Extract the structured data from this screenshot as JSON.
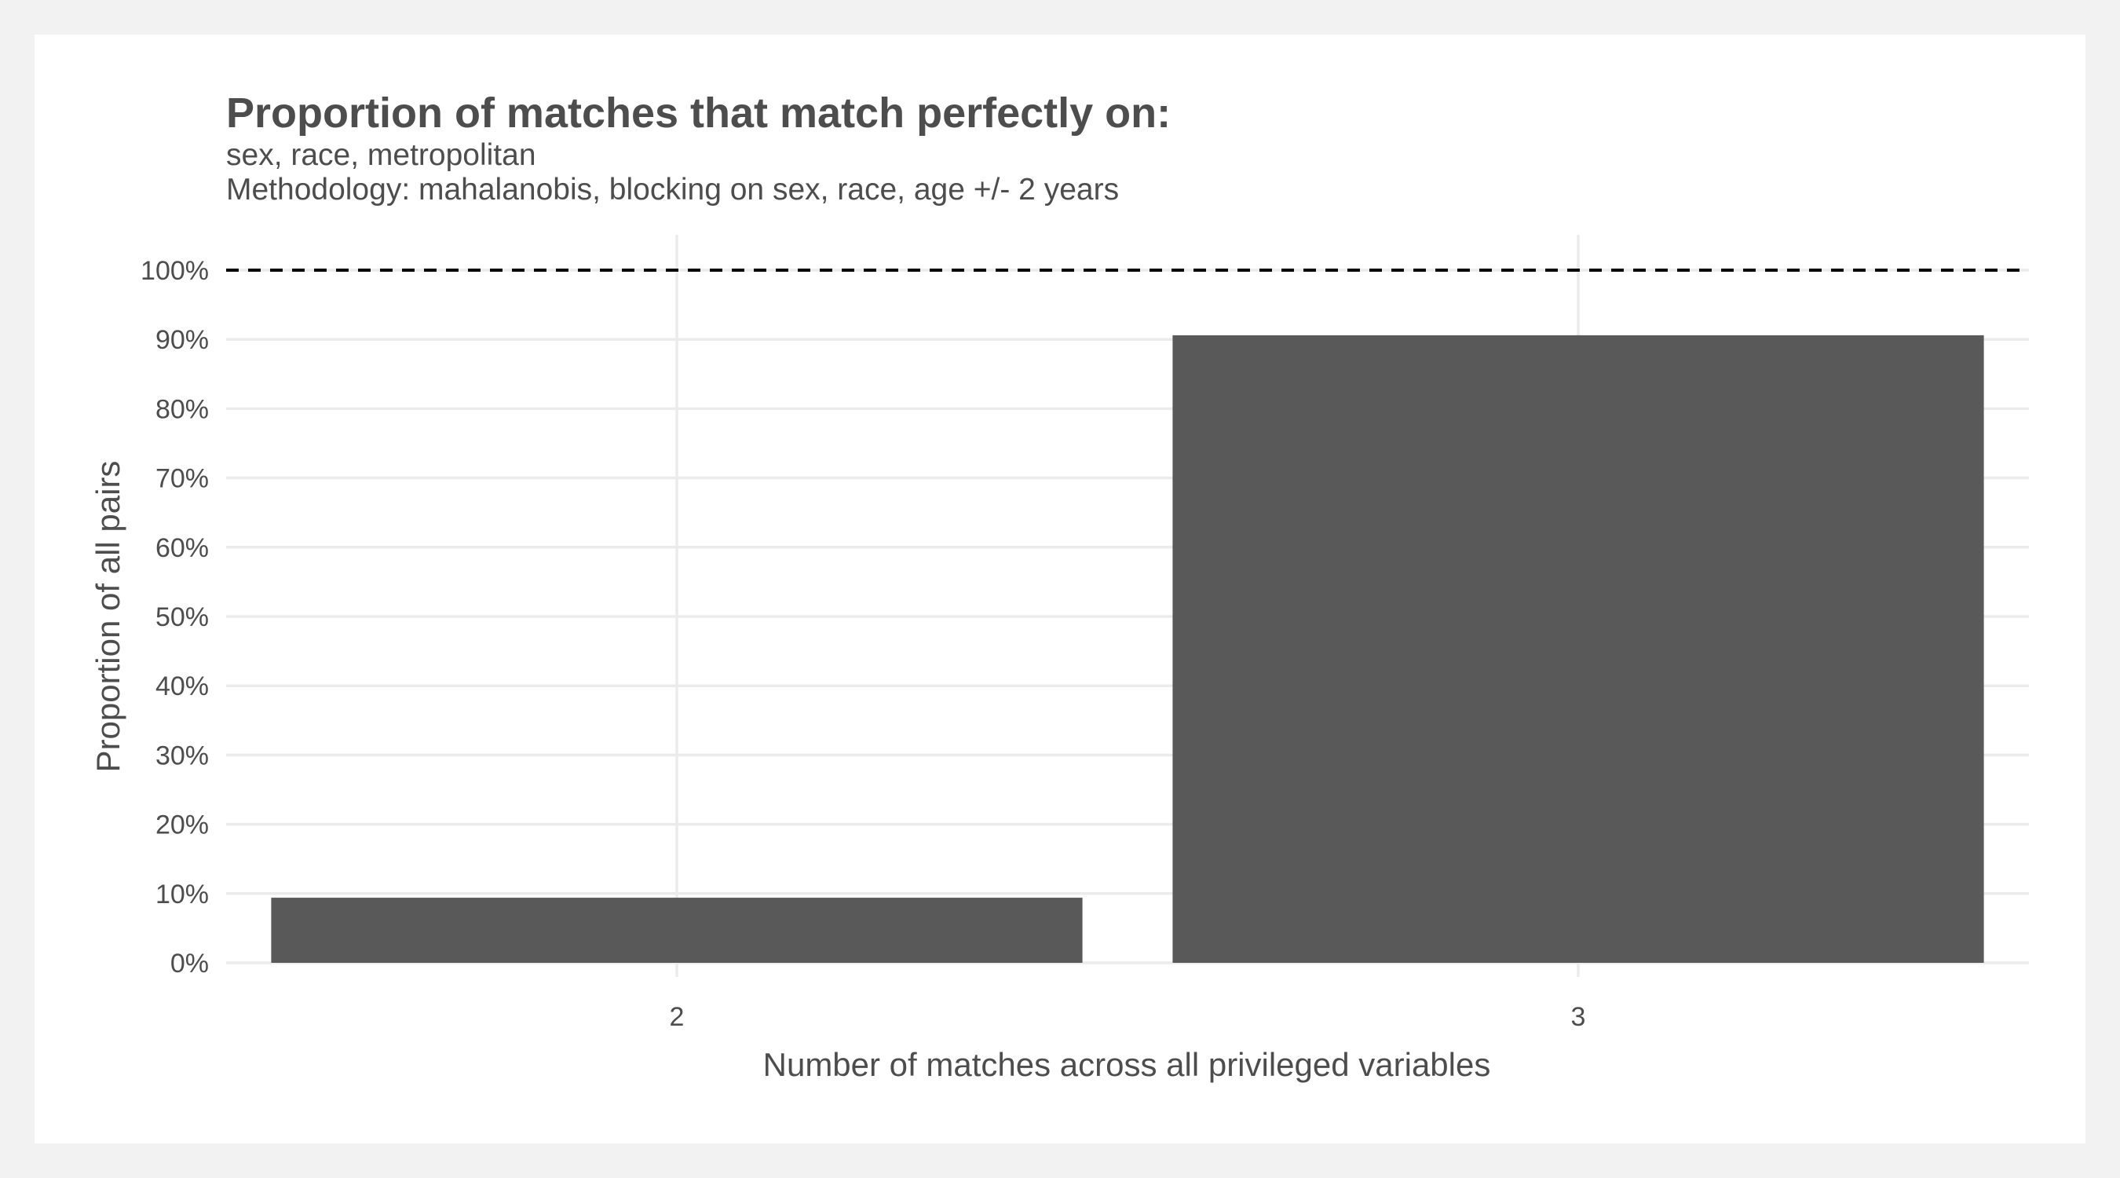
{
  "chart_data": {
    "type": "bar",
    "title": "Proportion of matches that match perfectly on:",
    "subtitle_lines": [
      "sex, race, metropolitan",
      "Methodology: mahalanobis, blocking on sex, race, age +/- 2 years"
    ],
    "xlabel": "Number of matches across all privileged variables",
    "ylabel": "Proportion of all pairs",
    "categories": [
      "2",
      "3"
    ],
    "values": [
      0.094,
      0.906
    ],
    "ylim": [
      0,
      1.05
    ],
    "y_ticks": [
      0,
      0.1,
      0.2,
      0.3,
      0.4,
      0.5,
      0.6,
      0.7,
      0.8,
      0.9,
      1.0
    ],
    "y_tick_labels": [
      "0%",
      "10%",
      "20%",
      "30%",
      "40%",
      "50%",
      "60%",
      "70%",
      "80%",
      "90%",
      "100%"
    ],
    "reference_line": {
      "value": 1.0,
      "style": "dashed",
      "color": "#000000"
    },
    "bar_color": "#595959",
    "grid": true
  }
}
